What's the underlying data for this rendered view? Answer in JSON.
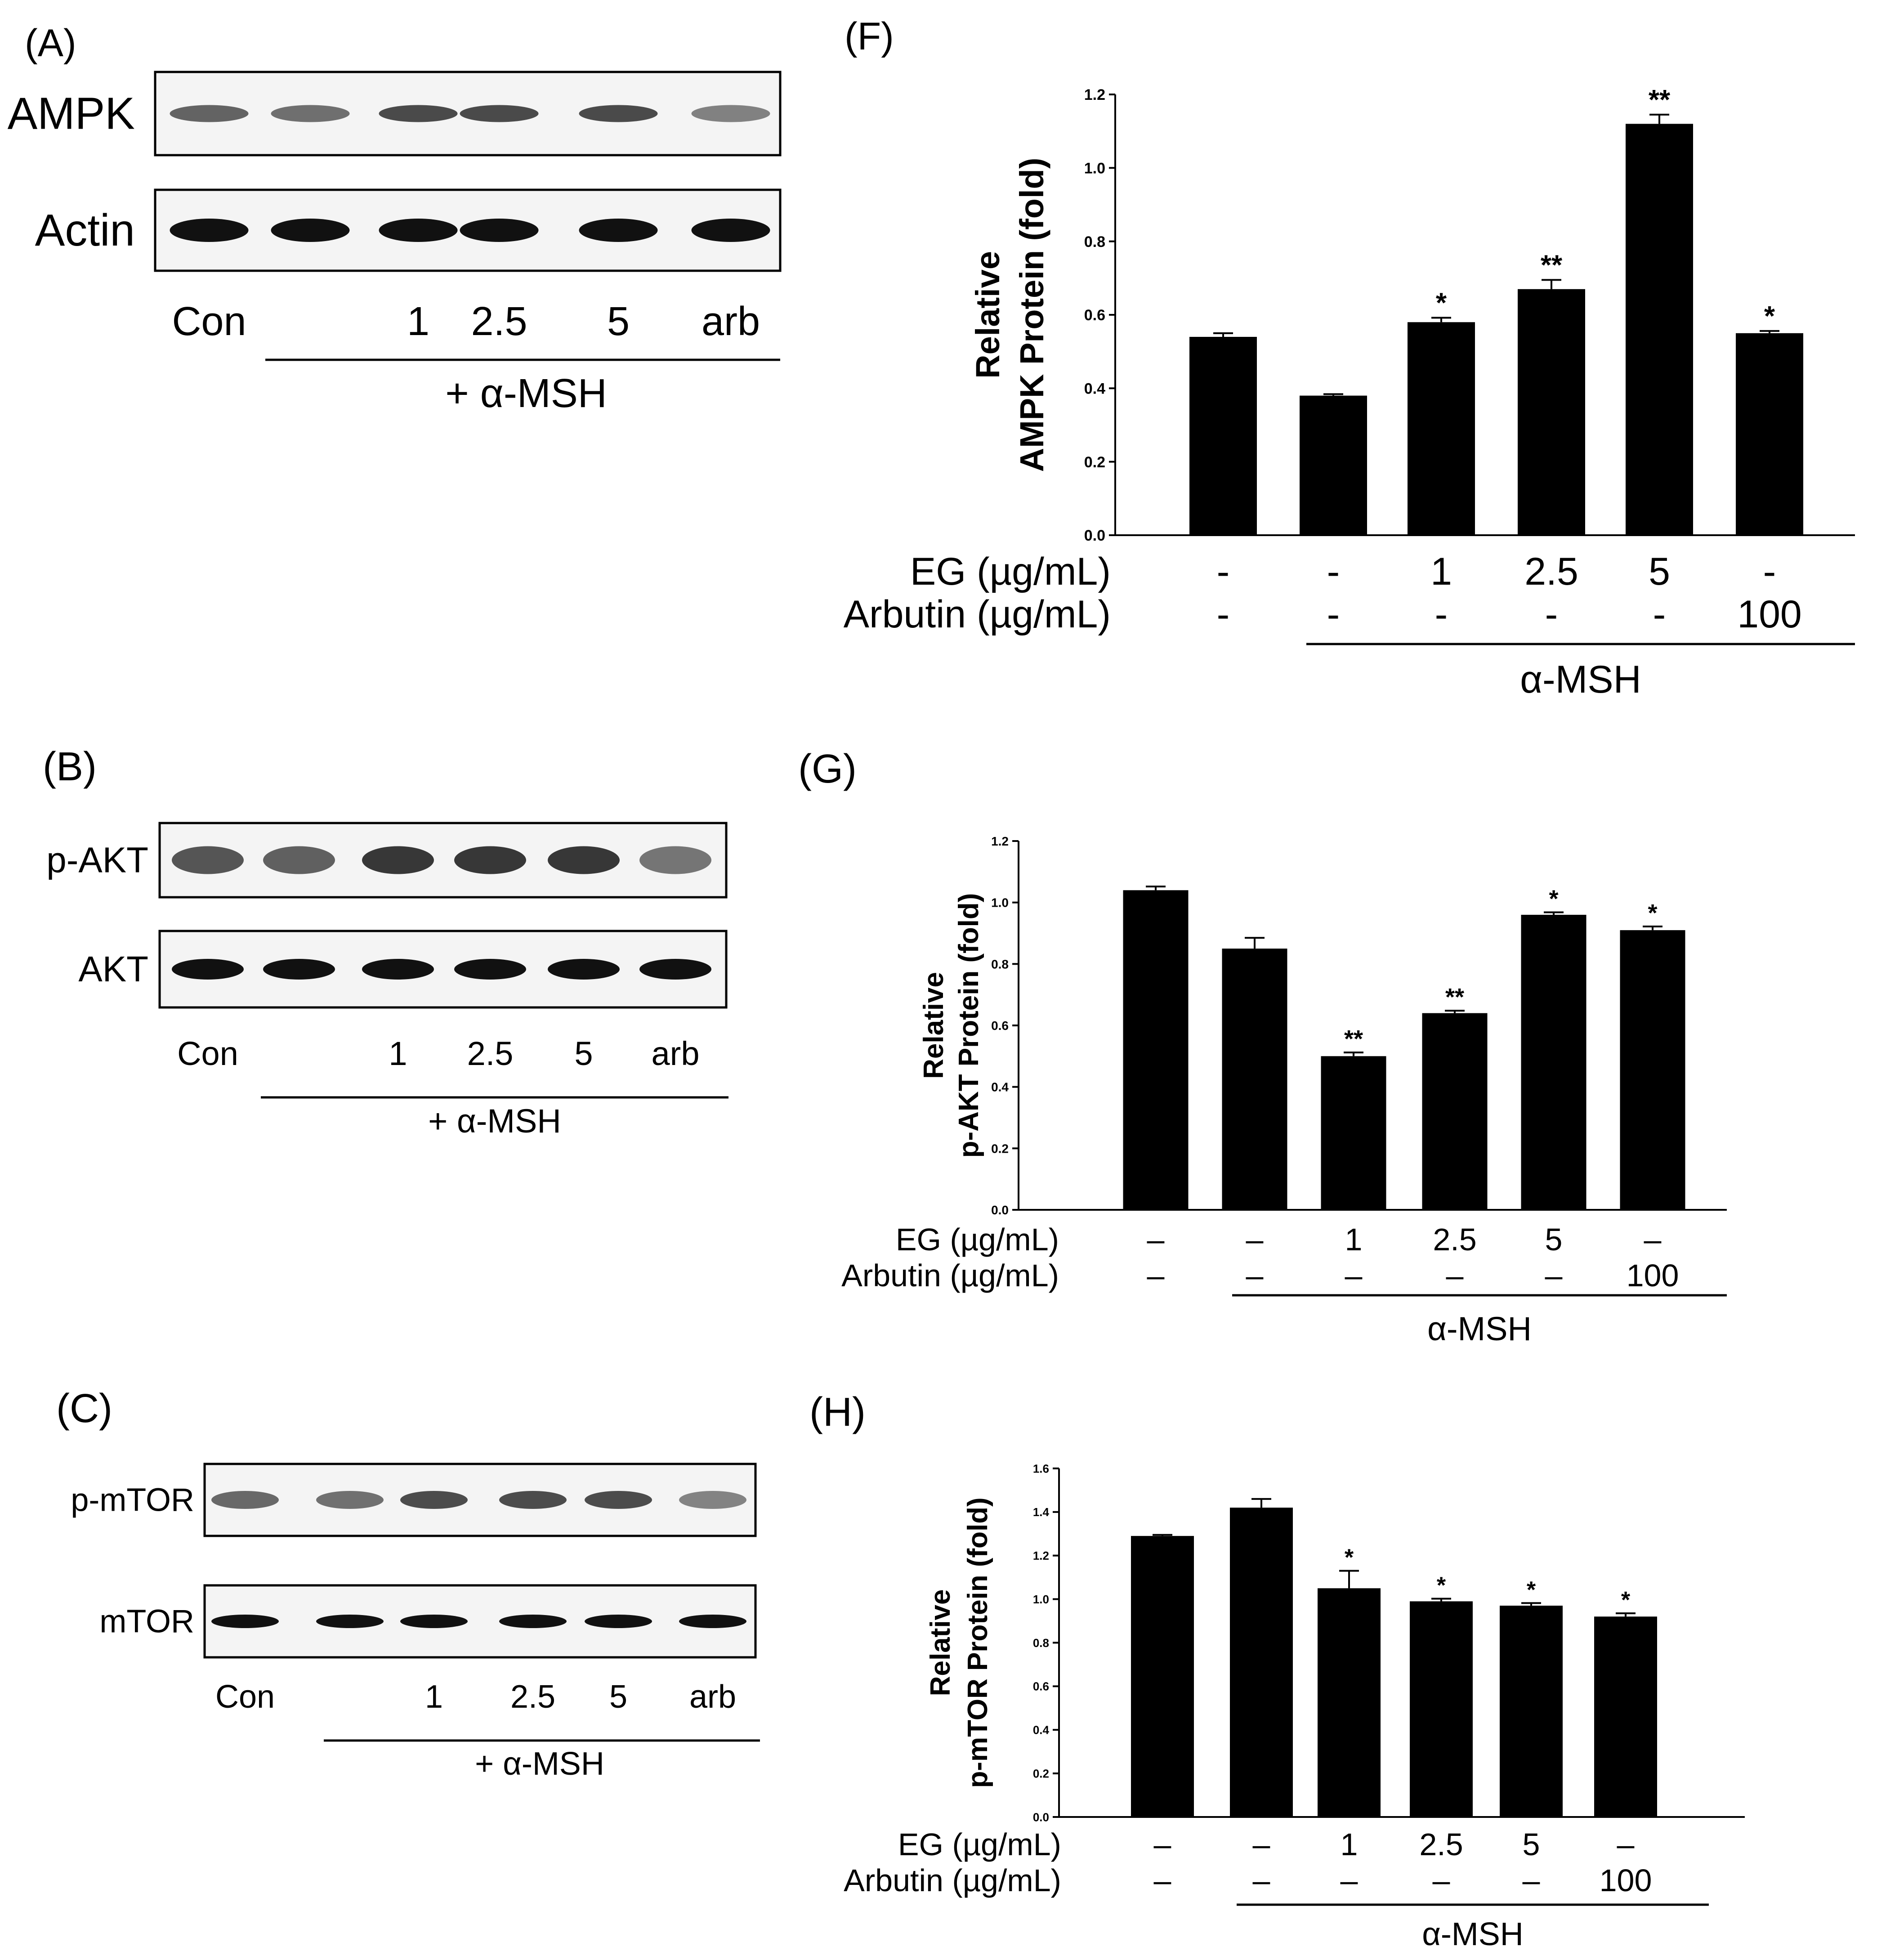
{
  "blots": [
    {
      "panel_label": "(A)",
      "proteins": [
        "AMPK",
        "Actin"
      ],
      "lanes": [
        "Con",
        "",
        "1",
        "2.5",
        "5",
        "arb"
      ],
      "treatment": "+ α-MSH"
    },
    {
      "panel_label": "(B)",
      "proteins": [
        "p-AKT",
        "AKT"
      ],
      "lanes": [
        "Con",
        "",
        "1",
        "2.5",
        "5",
        "arb"
      ],
      "treatment": "+ α-MSH"
    },
    {
      "panel_label": "(C)",
      "proteins": [
        "p-mTOR",
        "mTOR"
      ],
      "lanes": [
        "Con",
        "",
        "1",
        "2.5",
        "5",
        "arb"
      ],
      "treatment": "+ α-MSH"
    }
  ],
  "chart_data": [
    {
      "panel_label": "(F)",
      "type": "bar",
      "ylabel_line1": "Relative",
      "ylabel_line2": "AMPK Protein (fold)",
      "ylim": [
        0,
        1.2
      ],
      "yticks": [
        "0.0",
        "0.2",
        "0.4",
        "0.6",
        "0.8",
        "1.0",
        "1.2"
      ],
      "values": [
        0.54,
        0.38,
        0.58,
        0.67,
        1.12,
        0.55
      ],
      "errors": [
        0.01,
        0.004,
        0.012,
        0.025,
        0.025,
        0.006
      ],
      "significance": [
        "",
        "",
        "*",
        "**",
        "**",
        "*"
      ],
      "row1_label": "EG (µg/mL)",
      "row1": [
        "-",
        "-",
        "1",
        "2.5",
        "5",
        "-"
      ],
      "row2_label": "Arbutin (µg/mL)",
      "row2": [
        "-",
        "-",
        "-",
        "-",
        "-",
        "100"
      ],
      "group_label": "α-MSH"
    },
    {
      "panel_label": "(G)",
      "type": "bar",
      "ylabel_line1": "Relative",
      "ylabel_line2": "p-AKT Protein (fold)",
      "ylim": [
        0,
        1.2
      ],
      "yticks": [
        "0.0",
        "0.2",
        "0.4",
        "0.6",
        "0.8",
        "1.0",
        "1.2"
      ],
      "values": [
        1.04,
        0.85,
        0.5,
        0.64,
        0.96,
        0.91
      ],
      "errors": [
        0.012,
        0.035,
        0.012,
        0.008,
        0.008,
        0.012
      ],
      "significance": [
        "",
        "",
        "**",
        "**",
        "*",
        "*"
      ],
      "row1_label": "EG (µg/mL)",
      "row1": [
        "–",
        "–",
        "1",
        "2.5",
        "5",
        "–"
      ],
      "row2_label": "Arbutin (µg/mL)",
      "row2": [
        "–",
        "–",
        "–",
        "–",
        "–",
        "100"
      ],
      "group_label": "α-MSH"
    },
    {
      "panel_label": "(H)",
      "type": "bar",
      "ylabel_line1": "Relative",
      "ylabel_line2": "p-mTOR Protein (fold)",
      "ylim": [
        0,
        1.6
      ],
      "yticks": [
        "0.0",
        "0.2",
        "0.4",
        "0.6",
        "0.8",
        "1.0",
        "1.2",
        "1.4",
        "1.6"
      ],
      "values": [
        1.29,
        1.42,
        1.05,
        0.99,
        0.97,
        0.92
      ],
      "errors": [
        0.005,
        0.04,
        0.08,
        0.012,
        0.012,
        0.015
      ],
      "significance": [
        "",
        "",
        "*",
        "*",
        "*",
        "*"
      ],
      "row1_label": "EG (µg/mL)",
      "row1": [
        "–",
        "–",
        "1",
        "2.5",
        "5",
        "–"
      ],
      "row2_label": "Arbutin (µg/mL)",
      "row2": [
        "–",
        "–",
        "–",
        "–",
        "–",
        "100"
      ],
      "group_label": "α-MSH"
    }
  ]
}
